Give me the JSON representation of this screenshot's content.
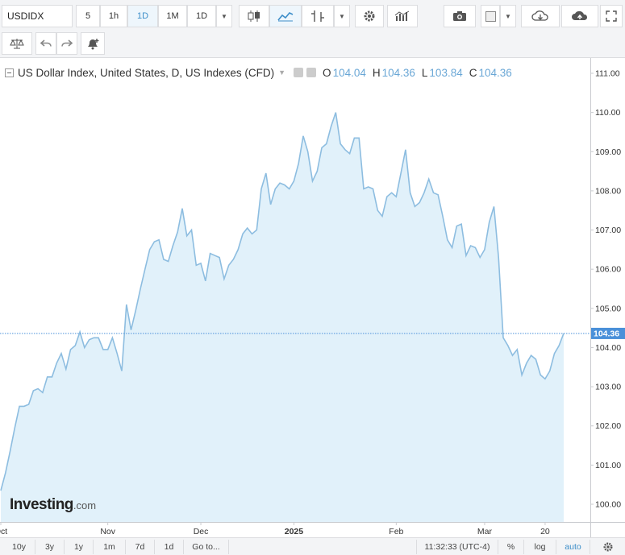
{
  "toolbar": {
    "symbol": "USDIDX",
    "intervals": [
      "5",
      "1h",
      "1D",
      "1M"
    ],
    "active_interval": "1D",
    "interval_dropdown": "1D",
    "icons": [
      "candlestick-icon",
      "area-chart-icon",
      "indicators-icon",
      "settings-icon",
      "studies-icon",
      "camera-icon",
      "color-box-icon",
      "cloud-download-icon",
      "cloud-upload-icon",
      "fullscreen-icon"
    ]
  },
  "toolbar2": {
    "icons": [
      "compare-scale-icon",
      "undo-icon",
      "redo-icon",
      "add-alert-icon"
    ]
  },
  "legend": {
    "title": "US Dollar Index, United States, D, US Indexes (CFD)",
    "open_label": "O",
    "open": "104.04",
    "high_label": "H",
    "high": "104.36",
    "low_label": "L",
    "low": "103.84",
    "close_label": "C",
    "close": "104.36"
  },
  "last_price_label": "104.36",
  "logo": {
    "brand": "Investing",
    "domain": ".com"
  },
  "bottombar": {
    "ranges": [
      "10y",
      "3y",
      "1y",
      "1m",
      "7d",
      "1d"
    ],
    "goto": "Go to...",
    "time": "11:32:33 (UTC-4)",
    "percent": "%",
    "log": "log",
    "auto": "auto"
  },
  "colors": {
    "line": "#8dbde0",
    "fill": "#e1f1fa",
    "last_price": "#4a90d9",
    "axis_text": "#333333"
  },
  "chart_data": {
    "type": "area",
    "title": "US Dollar Index, United States, D, US Indexes (CFD)",
    "xlabel": "",
    "ylabel": "",
    "ylim": [
      99.8,
      111.2
    ],
    "y_ticks": [
      "100.00",
      "101.00",
      "102.00",
      "103.00",
      "104.00",
      "105.00",
      "106.00",
      "107.00",
      "108.00",
      "109.00",
      "110.00",
      "111.00"
    ],
    "x_ticks": [
      {
        "label": "Oct",
        "index": 0
      },
      {
        "label": "Nov",
        "index": 23
      },
      {
        "label": "Dec",
        "index": 43
      },
      {
        "label": "2025",
        "index": 63
      },
      {
        "label": "Feb",
        "index": 85
      },
      {
        "label": "Mar",
        "index": 104
      },
      {
        "label": "20",
        "index": 117
      }
    ],
    "last_value": 104.36,
    "grid": false,
    "legend": "top-left",
    "values": [
      100.35,
      100.8,
      101.35,
      101.95,
      102.5,
      102.5,
      102.55,
      102.9,
      102.95,
      102.85,
      103.25,
      103.25,
      103.6,
      103.85,
      103.45,
      103.95,
      104.05,
      104.4,
      104.0,
      104.2,
      104.25,
      104.25,
      103.95,
      103.95,
      104.25,
      103.85,
      103.4,
      105.1,
      104.45,
      104.95,
      105.5,
      106.0,
      106.5,
      106.7,
      106.75,
      106.25,
      106.2,
      106.6,
      106.95,
      107.55,
      106.85,
      107.0,
      106.1,
      106.15,
      105.7,
      106.4,
      106.35,
      106.3,
      105.75,
      106.1,
      106.25,
      106.5,
      106.9,
      107.05,
      106.9,
      107.0,
      108.05,
      108.45,
      107.65,
      108.05,
      108.2,
      108.15,
      108.05,
      108.25,
      108.7,
      109.4,
      109.0,
      108.25,
      108.5,
      109.1,
      109.2,
      109.65,
      110.0,
      109.2,
      109.05,
      108.95,
      109.35,
      109.35,
      108.05,
      108.1,
      108.05,
      107.5,
      107.35,
      107.85,
      107.95,
      107.85,
      108.45,
      109.05,
      107.95,
      107.6,
      107.7,
      107.95,
      108.3,
      107.95,
      107.9,
      107.35,
      106.75,
      106.55,
      107.1,
      107.15,
      106.35,
      106.6,
      106.55,
      106.3,
      106.5,
      107.2,
      107.6,
      106.3,
      104.25,
      104.05,
      103.8,
      103.95,
      103.3,
      103.6,
      103.8,
      103.7,
      103.3,
      103.2,
      103.4,
      103.85,
      104.05,
      104.36
    ]
  }
}
